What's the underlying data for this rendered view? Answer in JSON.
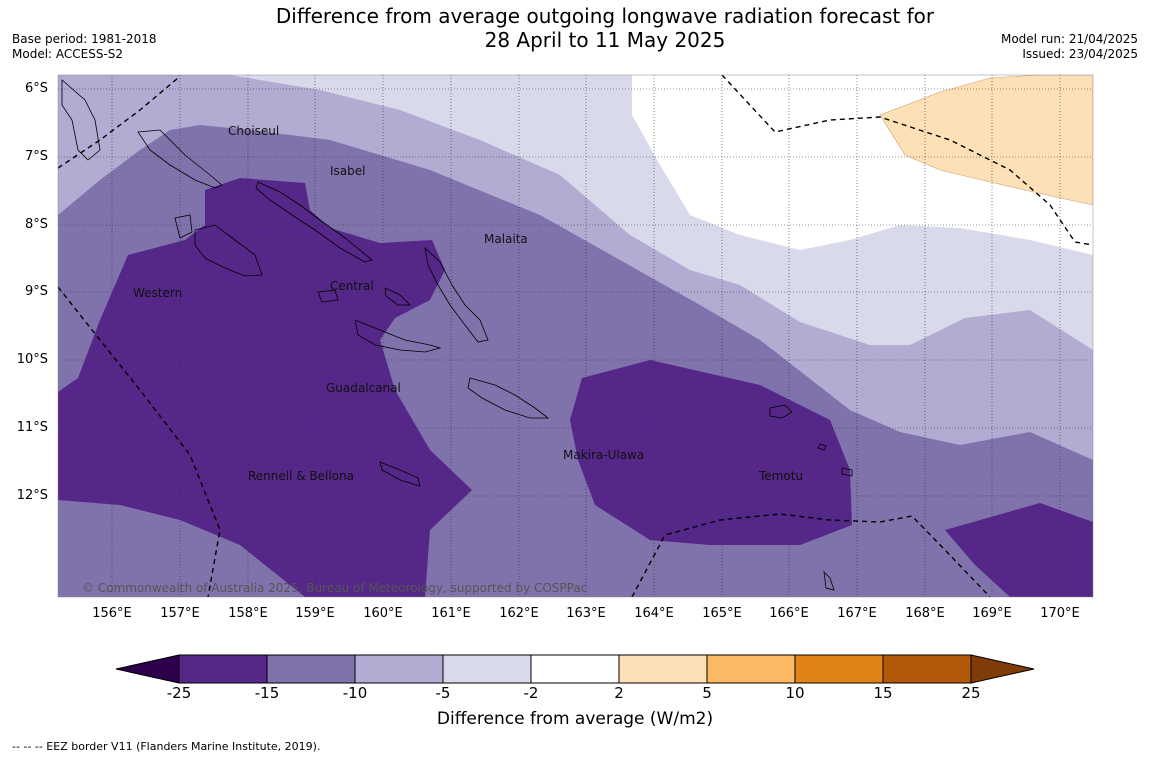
{
  "title_line1": "Difference from average outgoing longwave radiation forecast for",
  "title_line2": "28 April to 11 May 2025",
  "meta_left": {
    "base_period": "Base period: 1981-2018",
    "model": "Model: ACCESS-S2"
  },
  "meta_right": {
    "model_run": "Model run: 21/04/2025",
    "issued": "Issued: 23/04/2025"
  },
  "copyright": "© Commonwealth of Australia 2025, Bureau of Meteorology, supported by COSPPac",
  "places": {
    "choiseul": "Choiseul",
    "isabel": "Isabel",
    "malaita": "Malaita",
    "western": "Western",
    "central": "Central",
    "guadalcanal": "Guadalcanal",
    "makira_ulawa": "Makira-Ulawa",
    "temotu": "Temotu",
    "rennell_bellona": "Rennell & Bellona"
  },
  "lat_labels": [
    "6°S",
    "7°S",
    "8°S",
    "9°S",
    "10°S",
    "11°S",
    "12°S"
  ],
  "lon_labels": [
    "156°E",
    "157°E",
    "158°E",
    "159°E",
    "160°E",
    "161°E",
    "162°E",
    "163°E",
    "164°E",
    "165°E",
    "166°E",
    "167°E",
    "168°E",
    "169°E",
    "170°E"
  ],
  "colorbar": {
    "title": "Difference from average (W/m2)",
    "ticks": [
      "-25",
      "-15",
      "-10",
      "-5",
      "-2",
      "2",
      "5",
      "10",
      "15",
      "25"
    ],
    "colors": {
      "below_min": "#2d004b",
      "c1": "#542788",
      "c2": "#8073ac",
      "c3": "#b2abd2",
      "c4": "#d8daeb",
      "c5": "#ffffff",
      "c6": "#fee0b6",
      "c7": "#fdb863",
      "c8": "#e08214",
      "c9": "#b35806",
      "above_max": "#7f3b08"
    }
  },
  "footnote": "--  --  -- EEZ border V11 (Flanders Marine Institute, 2019)."
}
